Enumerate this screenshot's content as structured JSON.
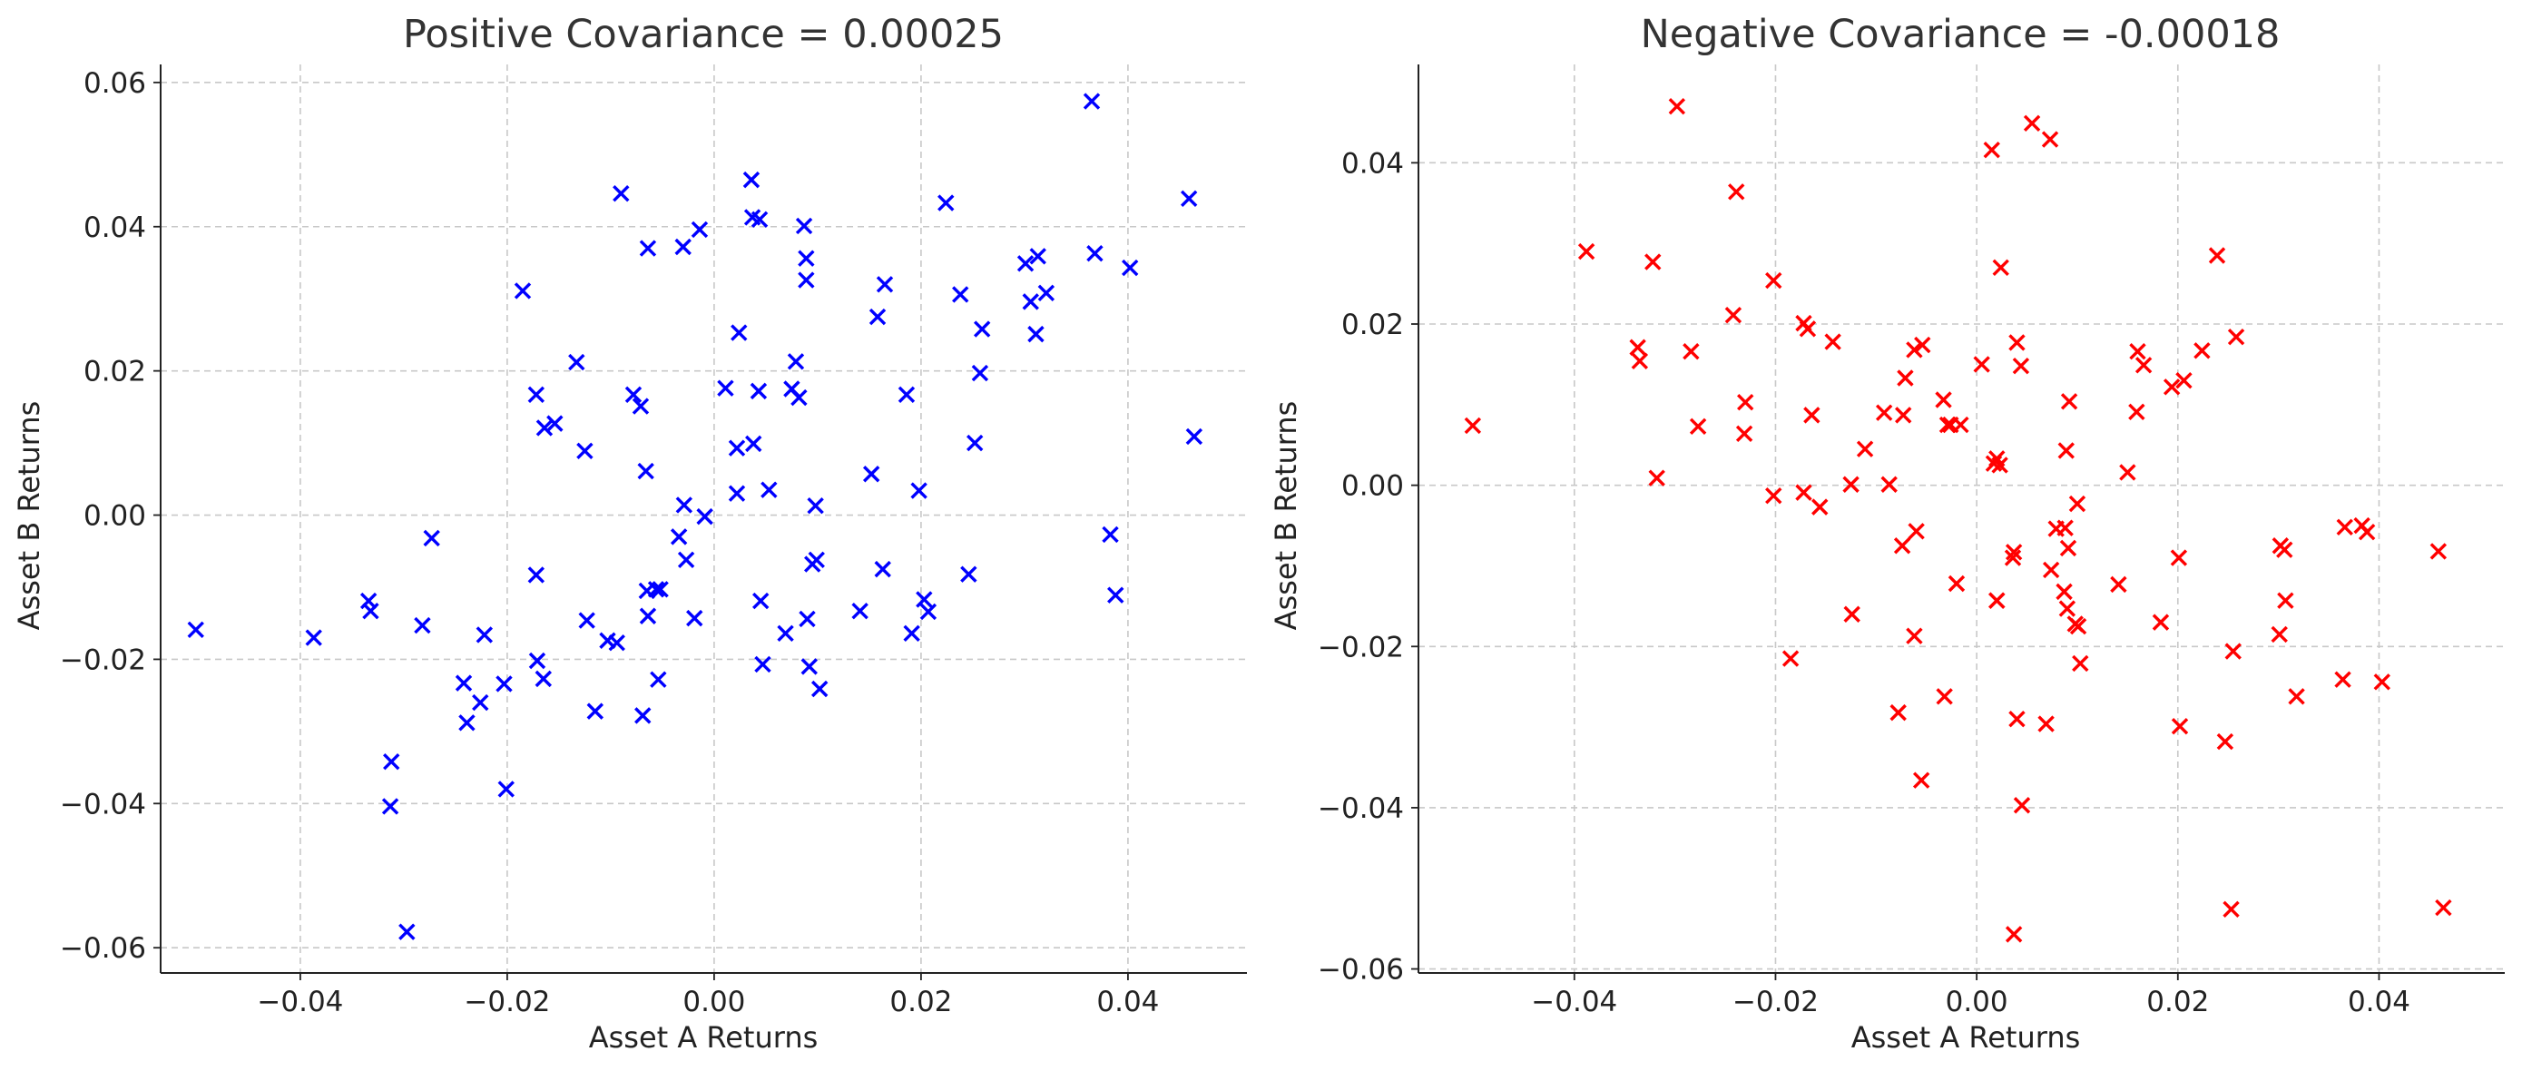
{
  "chart_data": [
    {
      "type": "scatter",
      "title": "Positive Covariance = 0.00025",
      "xlabel": "Asset A Returns",
      "ylabel": "Asset B Returns",
      "xlim": [
        -0.0535,
        0.0515
      ],
      "ylim": [
        -0.0635,
        0.0625
      ],
      "xticks": [
        -0.04,
        -0.02,
        0.0,
        0.02,
        0.04
      ],
      "xtick_labels": [
        "−0.04",
        "−0.02",
        "0.00",
        "0.02",
        "0.04"
      ],
      "yticks": [
        -0.06,
        -0.04,
        -0.02,
        0.0,
        0.02,
        0.04,
        0.06
      ],
      "ytick_labels": [
        "−0.06",
        "−0.04",
        "−0.02",
        "0.00",
        "0.02",
        "0.04",
        "0.06"
      ],
      "grid": true,
      "marker": "x",
      "color": "#0000ff",
      "x": [
        0.0036,
        0.0037,
        0.0044,
        0.0087,
        0.0089,
        0.0089,
        0.0165,
        0.0158,
        0.0224,
        0.0238,
        0.0301,
        0.0313,
        0.0306,
        0.0311,
        0.0321,
        0.0259,
        0.0257,
        0.0365,
        0.0368,
        0.0402,
        0.0459,
        0.0464,
        0.0252,
        0.0186,
        0.0079,
        0.0075,
        0.0082,
        0.0024,
        0.0043,
        0.0022,
        0.0011,
        0.0038,
        0.0053,
        -0.0009,
        0.0098,
        0.0152,
        0.0198,
        0.0022,
        0.0045,
        -0.0027,
        -0.0029,
        -0.0034,
        -0.0019,
        -0.0052,
        -0.0065,
        -0.0064,
        -0.0054,
        0.0163,
        0.0095,
        0.0099,
        0.0141,
        0.0069,
        0.009,
        0.0102,
        0.0047,
        0.0092,
        0.0191,
        0.0203,
        0.0207,
        0.0246,
        0.0383,
        0.0388,
        -0.009,
        -0.0014,
        -0.0064,
        -0.003,
        -0.0185,
        -0.0133,
        -0.0078,
        -0.0071,
        -0.0172,
        -0.0164,
        -0.0154,
        -0.0125,
        -0.0066,
        -0.0273,
        -0.0172,
        -0.0123,
        -0.0103,
        -0.0094,
        -0.0171,
        -0.0165,
        -0.0222,
        -0.0203,
        -0.0115,
        -0.0056,
        -0.0069,
        -0.0282,
        -0.0332,
        -0.0334,
        -0.0387,
        -0.0501,
        -0.0242,
        -0.0239,
        -0.0226,
        -0.0312,
        -0.0313,
        -0.0201,
        -0.0297
      ],
      "y": [
        0.0465,
        0.0413,
        0.041,
        0.0401,
        0.0356,
        0.0326,
        0.032,
        0.0275,
        0.0433,
        0.0306,
        0.0349,
        0.0359,
        0.0296,
        0.0251,
        0.0308,
        0.0258,
        0.0197,
        0.0574,
        0.0363,
        0.0343,
        0.0439,
        0.0109,
        0.01,
        0.0167,
        0.0213,
        0.0175,
        0.0163,
        0.0253,
        0.0172,
        0.0093,
        0.0176,
        0.0099,
        0.0035,
        -0.0002,
        0.0013,
        0.0057,
        0.0034,
        0.003,
        -0.0119,
        -0.0062,
        0.0014,
        -0.003,
        -0.0143,
        -0.0103,
        -0.0105,
        -0.014,
        -0.0228,
        -0.0075,
        -0.0068,
        -0.0062,
        -0.0133,
        -0.0164,
        -0.0144,
        -0.0241,
        -0.0207,
        -0.021,
        -0.0164,
        -0.0117,
        -0.0134,
        -0.0082,
        -0.0027,
        -0.0111,
        0.0446,
        0.0396,
        0.037,
        0.0372,
        0.0311,
        0.0212,
        0.0167,
        0.0151,
        0.0167,
        0.0121,
        0.0127,
        0.0089,
        0.0061,
        -0.0032,
        -0.0083,
        -0.0146,
        -0.0174,
        -0.0177,
        -0.0202,
        -0.0227,
        -0.0166,
        -0.0234,
        -0.0272,
        -0.0103,
        -0.0278,
        -0.0153,
        -0.0133,
        -0.0119,
        -0.017,
        -0.0159,
        -0.0233,
        -0.0288,
        -0.026,
        -0.0342,
        -0.0404,
        -0.038,
        -0.0578
      ]
    },
    {
      "type": "scatter",
      "title": "Negative Covariance = -0.00018",
      "xlabel": "Asset A Returns",
      "ylabel": "Asset B Returns",
      "xlim": [
        -0.0555,
        0.0525
      ],
      "ylim": [
        -0.0605,
        0.0522
      ],
      "xticks": [
        -0.04,
        -0.02,
        0.0,
        0.02,
        0.04
      ],
      "xtick_labels": [
        "−0.04",
        "−0.02",
        "0.00",
        "0.02",
        "0.04"
      ],
      "yticks": [
        -0.06,
        -0.04,
        -0.02,
        0.0,
        0.02,
        0.04
      ],
      "ytick_labels": [
        "−0.06",
        "−0.04",
        "−0.02",
        "0.00",
        "0.02",
        "0.04"
      ],
      "grid": true,
      "marker": "x",
      "color": "#ff0000",
      "x": [
        -0.0298,
        -0.0239,
        -0.0388,
        -0.0322,
        -0.0501,
        -0.0337,
        -0.0335,
        -0.0284,
        -0.0242,
        -0.0202,
        -0.023,
        -0.0277,
        -0.0318,
        -0.0231,
        -0.0202,
        -0.0172,
        -0.0168,
        -0.0143,
        -0.0164,
        -0.0156,
        -0.0172,
        -0.0125,
        -0.0111,
        -0.0092,
        -0.0087,
        -0.0071,
        -0.0062,
        -0.0054,
        -0.0073,
        -0.0033,
        -0.0029,
        -0.0016,
        -0.002,
        -0.0074,
        -0.006,
        -0.0124,
        -0.0185,
        -0.0062,
        -0.0078,
        -0.0032,
        -0.0055,
        0.0005,
        0.002,
        0.0017,
        0.0023,
        0.0024,
        0.0015,
        0.0055,
        0.0073,
        0.002,
        -0.0026,
        0.004,
        0.0044,
        0.0092,
        0.0089,
        0.0036,
        0.0037,
        0.0088,
        0.0079,
        0.01,
        0.0091,
        0.0074,
        0.0087,
        0.009,
        0.0098,
        0.002,
        0.004,
        0.0045,
        0.0069,
        0.016,
        0.0166,
        0.015,
        0.0159,
        0.0194,
        0.0206,
        0.0224,
        0.0239,
        0.0258,
        0.0141,
        0.0183,
        0.0201,
        0.0202,
        0.0247,
        0.0255,
        0.0253,
        0.0302,
        0.0306,
        0.0307,
        0.0301,
        0.0318,
        0.0364,
        0.0366,
        0.0383,
        0.0388,
        0.0403,
        0.0459,
        0.0464,
        0.0101,
        0.0103,
        0.0037
      ],
      "y": [
        0.047,
        0.0364,
        0.029,
        0.0277,
        0.0074,
        0.0171,
        0.0154,
        0.0166,
        0.0211,
        0.0254,
        0.0103,
        0.0073,
        0.0009,
        0.0064,
        -0.0013,
        0.0201,
        0.0194,
        0.0178,
        0.0087,
        -0.0027,
        -0.0009,
        0.0001,
        0.0045,
        0.009,
        0.0001,
        0.0133,
        0.0168,
        0.0174,
        0.0087,
        0.0106,
        0.0075,
        0.0075,
        -0.0122,
        -0.0075,
        -0.0057,
        -0.016,
        -0.0215,
        -0.0187,
        -0.0282,
        -0.0262,
        -0.0366,
        0.015,
        0.0033,
        0.0027,
        0.0025,
        0.027,
        0.0416,
        0.0449,
        0.0429,
        -0.0143,
        0.0075,
        0.0177,
        0.0148,
        0.0104,
        0.0043,
        -0.009,
        -0.0083,
        -0.0053,
        -0.0054,
        -0.0023,
        -0.0078,
        -0.0105,
        -0.0132,
        -0.0153,
        -0.0172,
        -0.0143,
        -0.029,
        -0.0397,
        -0.0296,
        0.0166,
        0.0149,
        0.0016,
        0.0091,
        0.0122,
        0.013,
        0.0167,
        0.0285,
        0.0184,
        -0.0123,
        -0.017,
        -0.009,
        -0.0299,
        -0.0318,
        -0.0206,
        -0.0526,
        -0.0075,
        -0.008,
        -0.0143,
        -0.0185,
        -0.0262,
        -0.0241,
        -0.0052,
        -0.005,
        -0.0058,
        -0.0244,
        -0.0082,
        -0.0524,
        -0.0175,
        -0.0221,
        -0.0557
      ]
    }
  ]
}
